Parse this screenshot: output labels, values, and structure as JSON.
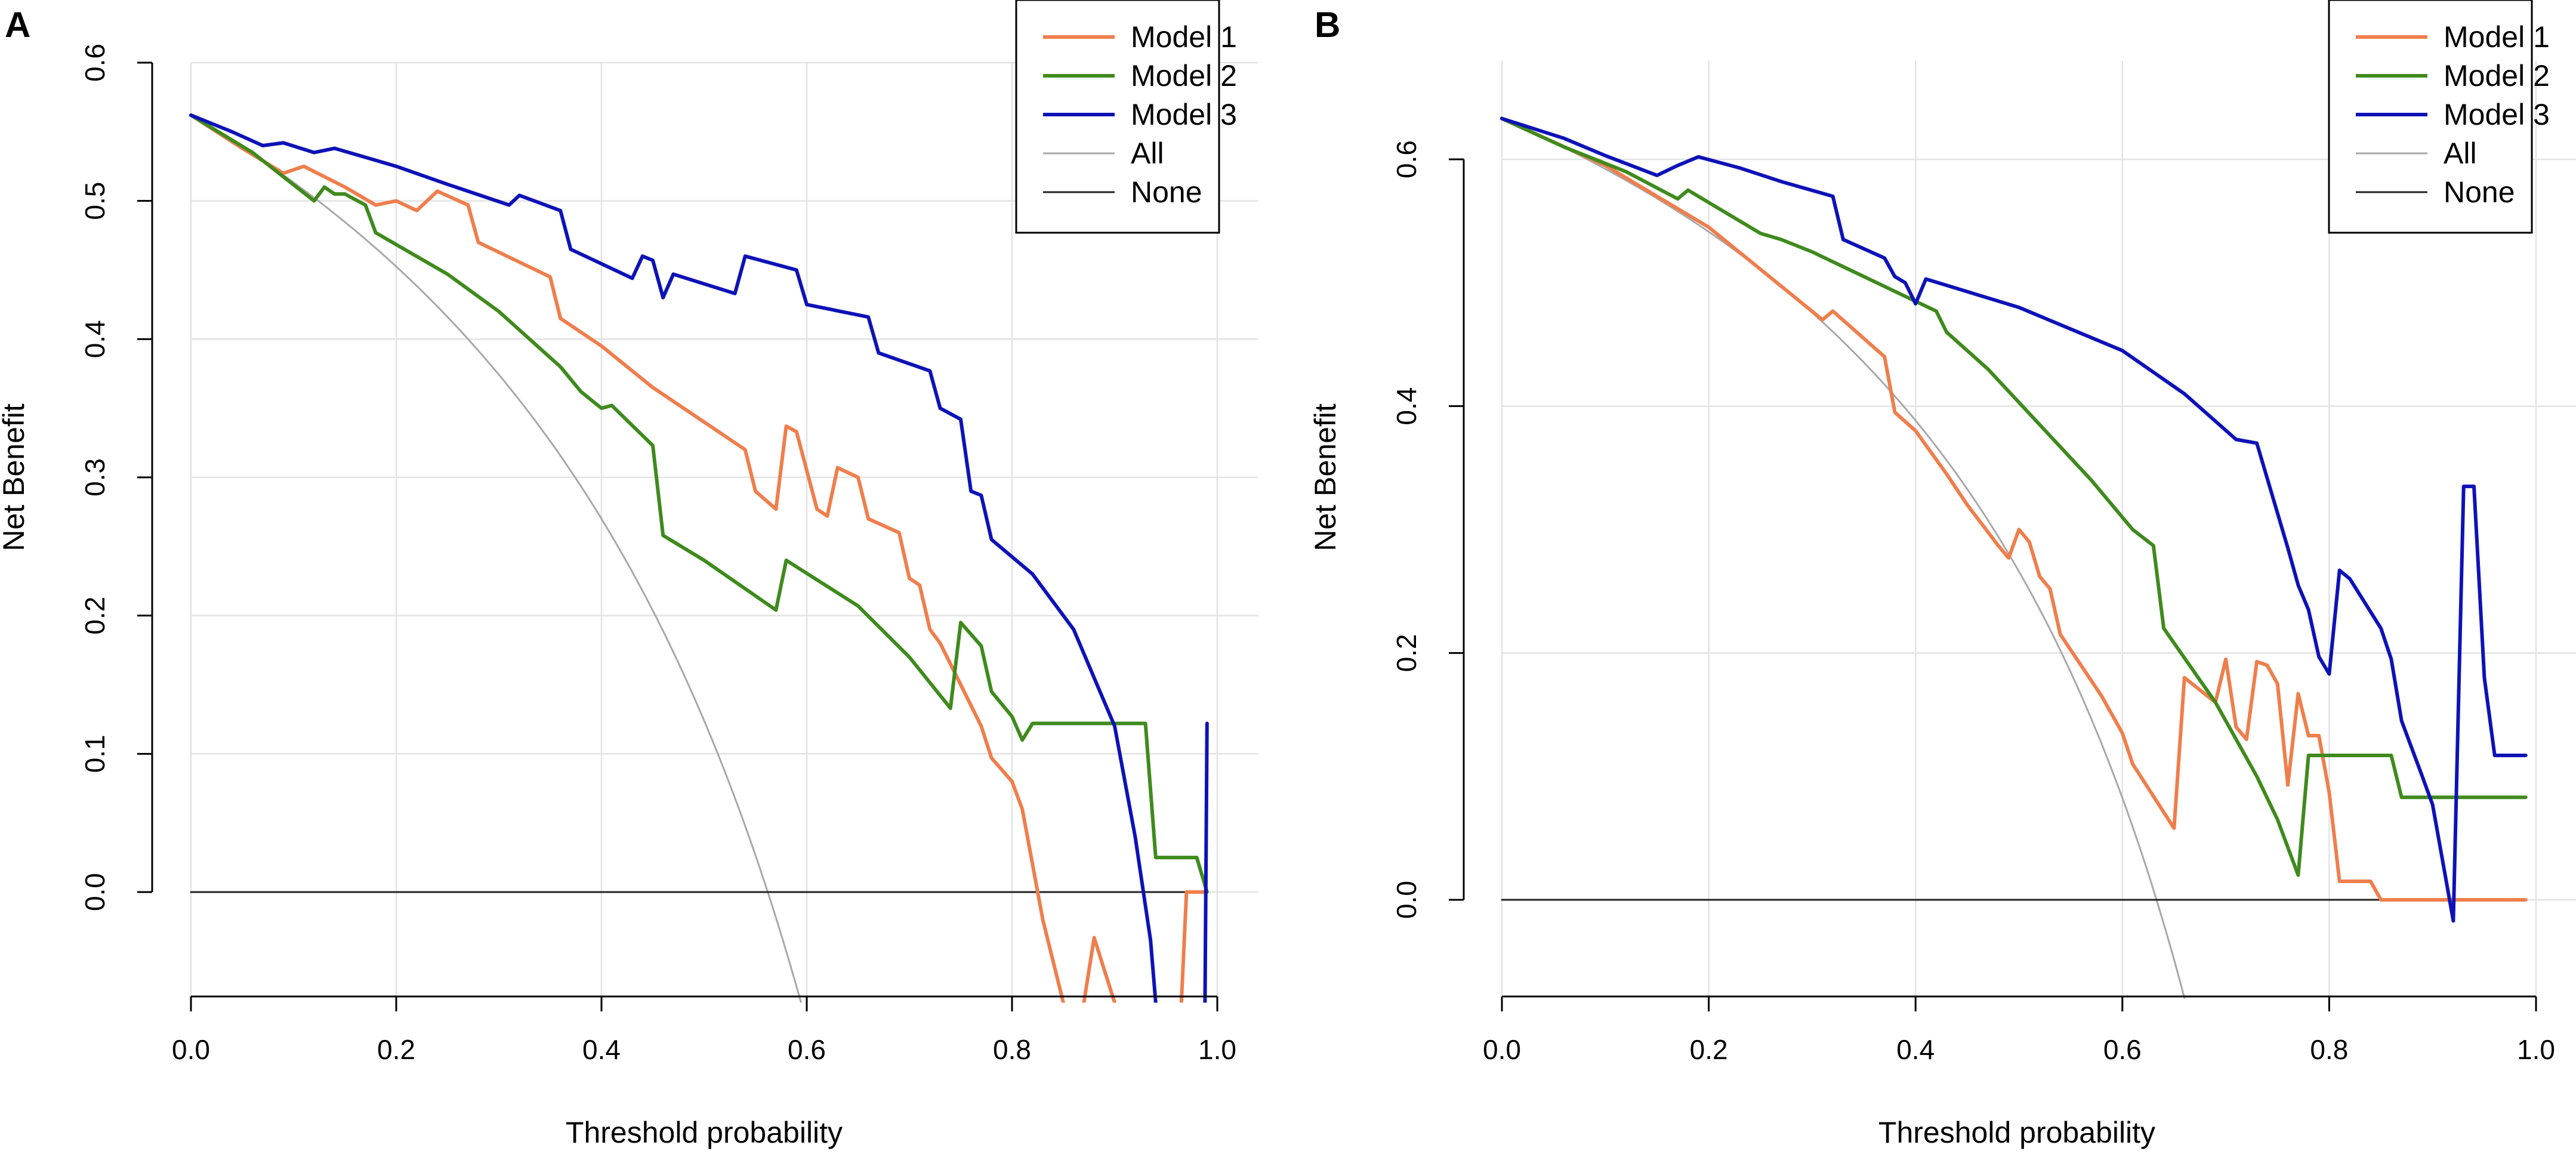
{
  "colors": {
    "model1": "#ef7e4c",
    "model2": "#3f8a1d",
    "model3": "#0d12b7",
    "all": "#a8a8a8",
    "none": "#222222",
    "grid": "#e3e3e3"
  },
  "chart_data": [
    {
      "type": "line",
      "panel": "A",
      "title": "",
      "xlabel": "Threshold probability",
      "ylabel": "Net Benefit",
      "xlim": [
        0,
        1
      ],
      "ylim": [
        -0.08,
        0.6
      ],
      "xticks": [
        "0.0",
        "0.2",
        "0.4",
        "0.6",
        "0.8",
        "1.0"
      ],
      "yticks": [
        "0.0",
        "0.1",
        "0.2",
        "0.3",
        "0.4",
        "0.5",
        "0.6"
      ],
      "legend_position": "top-right",
      "series": [
        {
          "name": "Model 1",
          "color": "#ef7e4c",
          "points": [
            [
              0,
              0.562
            ],
            [
              0.05,
              0.538
            ],
            [
              0.09,
              0.52
            ],
            [
              0.11,
              0.525
            ],
            [
              0.15,
              0.51
            ],
            [
              0.18,
              0.497
            ],
            [
              0.2,
              0.5
            ],
            [
              0.22,
              0.493
            ],
            [
              0.24,
              0.507
            ],
            [
              0.27,
              0.497
            ],
            [
              0.28,
              0.47
            ],
            [
              0.35,
              0.445
            ],
            [
              0.36,
              0.415
            ],
            [
              0.4,
              0.395
            ],
            [
              0.45,
              0.365
            ],
            [
              0.5,
              0.34
            ],
            [
              0.54,
              0.32
            ],
            [
              0.55,
              0.29
            ],
            [
              0.57,
              0.277
            ],
            [
              0.58,
              0.337
            ],
            [
              0.59,
              0.333
            ],
            [
              0.61,
              0.277
            ],
            [
              0.62,
              0.272
            ],
            [
              0.63,
              0.307
            ],
            [
              0.65,
              0.3
            ],
            [
              0.66,
              0.27
            ],
            [
              0.69,
              0.26
            ],
            [
              0.7,
              0.227
            ],
            [
              0.71,
              0.222
            ],
            [
              0.72,
              0.19
            ],
            [
              0.73,
              0.18
            ],
            [
              0.75,
              0.15
            ],
            [
              0.77,
              0.12
            ],
            [
              0.78,
              0.097
            ],
            [
              0.8,
              0.08
            ],
            [
              0.81,
              0.06
            ],
            [
              0.83,
              -0.02
            ],
            [
              0.85,
              -0.08
            ]
          ]
        },
        {
          "name": "Model 1 (tail)",
          "color": "#ef7e4c",
          "legend": false,
          "points": [
            [
              0.87,
              -0.08
            ],
            [
              0.88,
              -0.033
            ],
            [
              0.9,
              -0.08
            ]
          ]
        },
        {
          "name": "Model 1 (end)",
          "color": "#ef7e4c",
          "legend": false,
          "points": [
            [
              0.965,
              -0.08
            ],
            [
              0.97,
              0
            ],
            [
              0.99,
              0
            ]
          ]
        },
        {
          "name": "Model 2",
          "color": "#3f8a1d",
          "points": [
            [
              0,
              0.562
            ],
            [
              0.06,
              0.535
            ],
            [
              0.12,
              0.5
            ],
            [
              0.13,
              0.51
            ],
            [
              0.14,
              0.505
            ],
            [
              0.15,
              0.505
            ],
            [
              0.17,
              0.497
            ],
            [
              0.18,
              0.477
            ],
            [
              0.25,
              0.447
            ],
            [
              0.3,
              0.42
            ],
            [
              0.36,
              0.38
            ],
            [
              0.38,
              0.362
            ],
            [
              0.4,
              0.35
            ],
            [
              0.41,
              0.352
            ],
            [
              0.45,
              0.323
            ],
            [
              0.46,
              0.258
            ],
            [
              0.5,
              0.24
            ],
            [
              0.57,
              0.204
            ],
            [
              0.58,
              0.24
            ],
            [
              0.65,
              0.207
            ],
            [
              0.7,
              0.17
            ],
            [
              0.74,
              0.133
            ],
            [
              0.75,
              0.195
            ],
            [
              0.77,
              0.178
            ],
            [
              0.78,
              0.145
            ],
            [
              0.8,
              0.127
            ],
            [
              0.81,
              0.11
            ],
            [
              0.82,
              0.122
            ],
            [
              0.93,
              0.122
            ],
            [
              0.94,
              0.025
            ],
            [
              0.98,
              0.025
            ],
            [
              0.99,
              0
            ]
          ]
        },
        {
          "name": "Model 3",
          "color": "#0d12b7",
          "points": [
            [
              0,
              0.562
            ],
            [
              0.04,
              0.55
            ],
            [
              0.07,
              0.54
            ],
            [
              0.09,
              0.542
            ],
            [
              0.12,
              0.535
            ],
            [
              0.14,
              0.538
            ],
            [
              0.2,
              0.525
            ],
            [
              0.25,
              0.512
            ],
            [
              0.31,
              0.497
            ],
            [
              0.32,
              0.504
            ],
            [
              0.36,
              0.493
            ],
            [
              0.37,
              0.465
            ],
            [
              0.43,
              0.444
            ],
            [
              0.44,
              0.46
            ],
            [
              0.45,
              0.457
            ],
            [
              0.46,
              0.43
            ],
            [
              0.47,
              0.447
            ],
            [
              0.53,
              0.433
            ],
            [
              0.54,
              0.46
            ],
            [
              0.59,
              0.45
            ],
            [
              0.6,
              0.425
            ],
            [
              0.66,
              0.416
            ],
            [
              0.67,
              0.39
            ],
            [
              0.72,
              0.377
            ],
            [
              0.73,
              0.35
            ],
            [
              0.75,
              0.342
            ],
            [
              0.76,
              0.29
            ],
            [
              0.77,
              0.287
            ],
            [
              0.78,
              0.255
            ],
            [
              0.82,
              0.23
            ],
            [
              0.86,
              0.19
            ],
            [
              0.9,
              0.12
            ],
            [
              0.92,
              0.04
            ],
            [
              0.935,
              -0.035
            ],
            [
              0.94,
              -0.08
            ]
          ]
        },
        {
          "name": "Model 3 (end)",
          "color": "#0d12b7",
          "legend": false,
          "points": [
            [
              0.988,
              -0.08
            ],
            [
              0.99,
              0.122
            ]
          ]
        },
        {
          "name": "All",
          "color": "#a8a8a8",
          "formula": "treat_all",
          "prevalence": 0.562
        },
        {
          "name": "None",
          "color": "#222222",
          "points": [
            [
              0,
              0
            ],
            [
              0.99,
              0
            ]
          ]
        }
      ]
    },
    {
      "type": "line",
      "panel": "B",
      "title": "",
      "xlabel": "Threshold probability",
      "ylabel": "Net Benefit",
      "xlim": [
        0,
        1
      ],
      "ylim": [
        -0.08,
        0.68
      ],
      "xticks": [
        "0.0",
        "0.2",
        "0.4",
        "0.6",
        "0.8",
        "1.0"
      ],
      "yticks": [
        "0.0",
        "0.2",
        "0.4",
        "0.6"
      ],
      "legend_position": "top-right",
      "series": [
        {
          "name": "Model 1",
          "color": "#ef7e4c",
          "points": [
            [
              0,
              0.633
            ],
            [
              0.1,
              0.595
            ],
            [
              0.2,
              0.545
            ],
            [
              0.31,
              0.47
            ],
            [
              0.32,
              0.477
            ],
            [
              0.37,
              0.44
            ],
            [
              0.38,
              0.395
            ],
            [
              0.4,
              0.38
            ],
            [
              0.43,
              0.345
            ],
            [
              0.45,
              0.32
            ],
            [
              0.48,
              0.287
            ],
            [
              0.49,
              0.277
            ],
            [
              0.5,
              0.3
            ],
            [
              0.51,
              0.29
            ],
            [
              0.52,
              0.262
            ],
            [
              0.53,
              0.252
            ],
            [
              0.54,
              0.215
            ],
            [
              0.58,
              0.165
            ],
            [
              0.6,
              0.135
            ],
            [
              0.61,
              0.11
            ],
            [
              0.65,
              0.058
            ],
            [
              0.66,
              0.18
            ],
            [
              0.69,
              0.16
            ],
            [
              0.7,
              0.195
            ],
            [
              0.71,
              0.14
            ],
            [
              0.72,
              0.13
            ],
            [
              0.73,
              0.193
            ],
            [
              0.74,
              0.19
            ],
            [
              0.75,
              0.175
            ],
            [
              0.76,
              0.093
            ],
            [
              0.77,
              0.167
            ],
            [
              0.78,
              0.133
            ],
            [
              0.79,
              0.133
            ],
            [
              0.8,
              0.087
            ],
            [
              0.81,
              0.015
            ],
            [
              0.83,
              0.015
            ],
            [
              0.84,
              0.015
            ],
            [
              0.85,
              0
            ],
            [
              0.99,
              0
            ]
          ]
        },
        {
          "name": "Model 2",
          "color": "#3f8a1d",
          "points": [
            [
              0,
              0.633
            ],
            [
              0.06,
              0.61
            ],
            [
              0.12,
              0.59
            ],
            [
              0.17,
              0.568
            ],
            [
              0.18,
              0.575
            ],
            [
              0.25,
              0.54
            ],
            [
              0.27,
              0.535
            ],
            [
              0.3,
              0.525
            ],
            [
              0.35,
              0.505
            ],
            [
              0.4,
              0.485
            ],
            [
              0.42,
              0.477
            ],
            [
              0.43,
              0.46
            ],
            [
              0.47,
              0.43
            ],
            [
              0.52,
              0.385
            ],
            [
              0.57,
              0.34
            ],
            [
              0.61,
              0.3
            ],
            [
              0.63,
              0.287
            ],
            [
              0.64,
              0.22
            ],
            [
              0.69,
              0.16
            ],
            [
              0.73,
              0.1
            ],
            [
              0.75,
              0.065
            ],
            [
              0.77,
              0.02
            ],
            [
              0.78,
              0.117
            ],
            [
              0.86,
              0.117
            ],
            [
              0.87,
              0.083
            ],
            [
              0.99,
              0.083
            ]
          ]
        },
        {
          "name": "Model 3",
          "color": "#0d12b7",
          "points": [
            [
              0,
              0.633
            ],
            [
              0.06,
              0.617
            ],
            [
              0.1,
              0.603
            ],
            [
              0.15,
              0.587
            ],
            [
              0.17,
              0.595
            ],
            [
              0.19,
              0.602
            ],
            [
              0.23,
              0.593
            ],
            [
              0.27,
              0.582
            ],
            [
              0.32,
              0.57
            ],
            [
              0.33,
              0.535
            ],
            [
              0.37,
              0.52
            ],
            [
              0.38,
              0.505
            ],
            [
              0.39,
              0.5
            ],
            [
              0.4,
              0.483
            ],
            [
              0.41,
              0.503
            ],
            [
              0.5,
              0.48
            ],
            [
              0.6,
              0.445
            ],
            [
              0.66,
              0.41
            ],
            [
              0.71,
              0.373
            ],
            [
              0.73,
              0.37
            ],
            [
              0.76,
              0.285
            ],
            [
              0.77,
              0.255
            ],
            [
              0.78,
              0.235
            ],
            [
              0.79,
              0.197
            ],
            [
              0.8,
              0.183
            ],
            [
              0.81,
              0.267
            ],
            [
              0.82,
              0.26
            ],
            [
              0.85,
              0.22
            ],
            [
              0.86,
              0.195
            ],
            [
              0.87,
              0.145
            ],
            [
              0.89,
              0.1
            ],
            [
              0.9,
              0.077
            ],
            [
              0.92,
              -0.017
            ],
            [
              0.93,
              0.335
            ],
            [
              0.94,
              0.335
            ],
            [
              0.95,
              0.18
            ],
            [
              0.96,
              0.117
            ],
            [
              0.99,
              0.117
            ]
          ]
        },
        {
          "name": "All",
          "color": "#a8a8a8",
          "formula": "treat_all",
          "prevalence": 0.633
        },
        {
          "name": "None",
          "color": "#222222",
          "points": [
            [
              0,
              0
            ],
            [
              0.99,
              0
            ]
          ]
        }
      ]
    }
  ]
}
